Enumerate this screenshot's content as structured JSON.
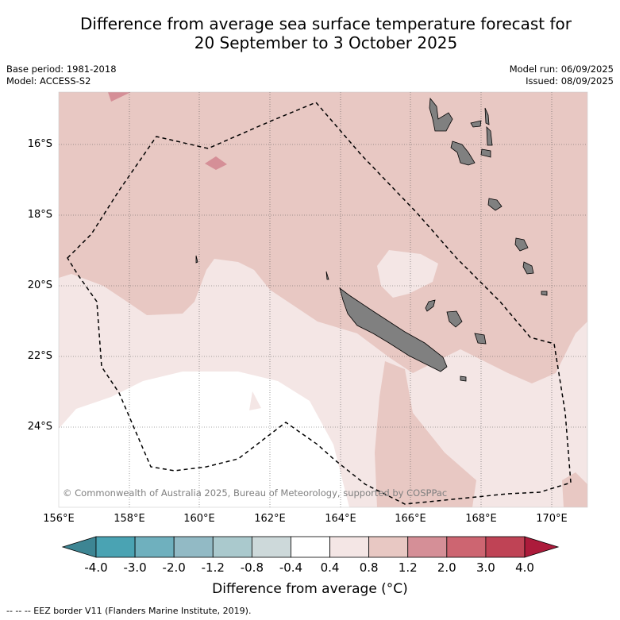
{
  "title": {
    "line1": "Difference from average sea surface temperature forecast for",
    "line2": "20 September to 3 October 2025"
  },
  "meta_left": {
    "base_period": "Base period: 1981-2018",
    "model": "Model: ACCESS-S2"
  },
  "meta_right": {
    "model_run": "Model run: 06/09/2025",
    "issued": "Issued: 08/09/2025"
  },
  "lat_labels": [
    "16°S",
    "18°S",
    "20°S",
    "22°S",
    "24°S"
  ],
  "lon_labels": [
    "156°E",
    "158°E",
    "160°E",
    "162°E",
    "164°E",
    "166°E",
    "168°E",
    "170°E"
  ],
  "copyright": "© Commonwealth of Australia 2025, Bureau of Meteorology, supported by COSPPac",
  "colorbar": {
    "title": "Difference from average (°C)",
    "labels": [
      "-4.0",
      "-3.0",
      "-2.0",
      "-1.2",
      "-0.8",
      "-0.4",
      "0.4",
      "0.8",
      "1.2",
      "2.0",
      "3.0",
      "4.0"
    ],
    "colors": [
      "#3d8593",
      "#4aa3b3",
      "#6fb0be",
      "#92bac5",
      "#aac9cd",
      "#cdd9da",
      "#ffffff",
      "#f4e6e5",
      "#e8c8c3",
      "#d58f97",
      "#cd6571",
      "#bf4355",
      "#ac1b3b"
    ]
  },
  "footer": "--  --  -- EEZ border V11 (Flanders Marine Institute, 2019)."
}
